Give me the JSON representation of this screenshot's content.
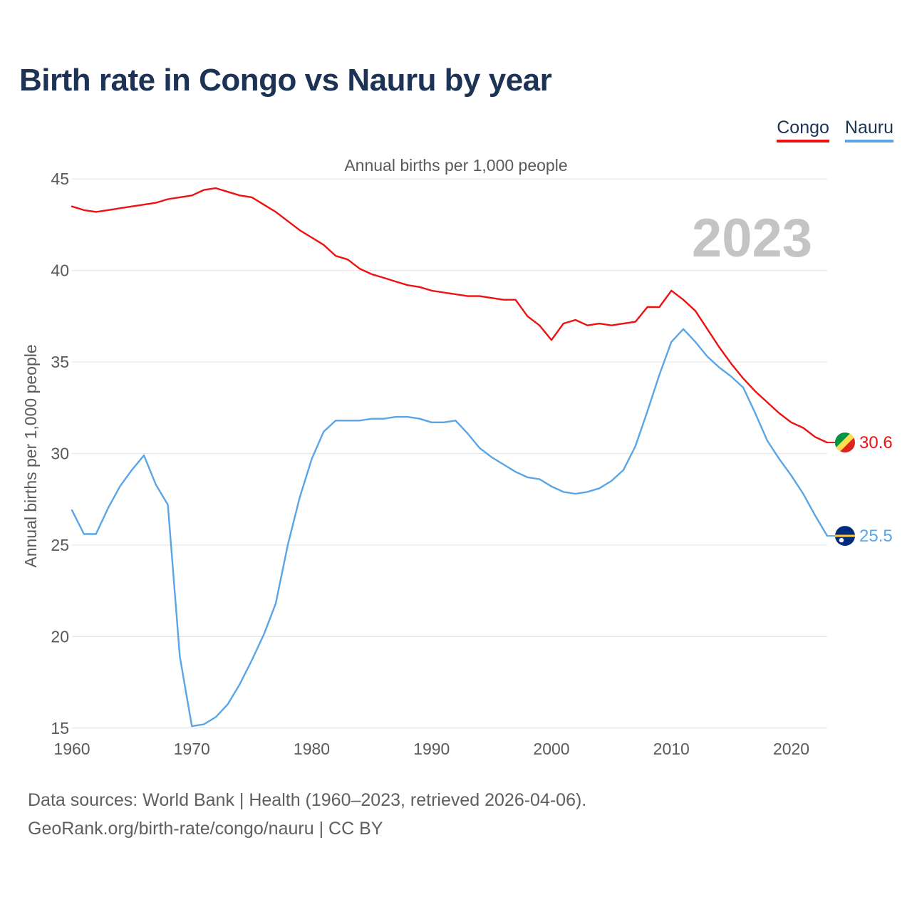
{
  "title": "Birth rate in Congo vs Nauru by year",
  "legend": [
    {
      "name": "Congo",
      "color": "#ee1111"
    },
    {
      "name": "Nauru",
      "color": "#5aa5e6"
    }
  ],
  "source": {
    "line1": "Data sources: World Bank | Health (1960–2023, retrieved 2026-04-06).",
    "line2": "GeoRank.org/birth-rate/congo/nauru | CC BY"
  },
  "chart_data": {
    "type": "line",
    "title": "Annual births per 1,000 people",
    "ylabel": "Annual births per 1,000 people",
    "xlabel": "",
    "year_watermark": "2023",
    "xlim": [
      1960,
      2023
    ],
    "ylim": [
      12.5,
      47.5
    ],
    "x_ticks": [
      1960,
      1970,
      1980,
      1990,
      2000,
      2010,
      2020
    ],
    "y_ticks": [
      15,
      20,
      25,
      30,
      35,
      40,
      45
    ],
    "grid": true,
    "x": [
      1960,
      1961,
      1962,
      1963,
      1964,
      1965,
      1966,
      1967,
      1968,
      1969,
      1970,
      1971,
      1972,
      1973,
      1974,
      1975,
      1976,
      1977,
      1978,
      1979,
      1980,
      1981,
      1982,
      1983,
      1984,
      1985,
      1986,
      1987,
      1988,
      1989,
      1990,
      1991,
      1992,
      1993,
      1994,
      1995,
      1996,
      1997,
      1998,
      1999,
      2000,
      2001,
      2002,
      2003,
      2004,
      2005,
      2006,
      2007,
      2008,
      2009,
      2010,
      2011,
      2012,
      2013,
      2014,
      2015,
      2016,
      2017,
      2018,
      2019,
      2020,
      2021,
      2022,
      2023
    ],
    "series": [
      {
        "name": "Congo",
        "color": "#ee1111",
        "end_label": "30.6",
        "values": [
          43.5,
          43.3,
          43.2,
          43.3,
          43.4,
          43.5,
          43.6,
          43.7,
          43.9,
          44.0,
          44.1,
          44.4,
          44.5,
          44.3,
          44.1,
          44.0,
          43.6,
          43.2,
          42.7,
          42.2,
          41.8,
          41.4,
          40.8,
          40.6,
          40.1,
          39.8,
          39.6,
          39.4,
          39.2,
          39.1,
          38.9,
          38.8,
          38.7,
          38.6,
          38.6,
          38.5,
          38.4,
          38.4,
          37.5,
          37.0,
          36.2,
          37.1,
          37.3,
          37.0,
          37.1,
          37.0,
          37.1,
          37.2,
          38.0,
          38.0,
          38.9,
          38.4,
          37.8,
          36.8,
          35.8,
          34.9,
          34.1,
          33.4,
          32.8,
          32.2,
          31.7,
          31.4,
          30.9,
          30.6
        ]
      },
      {
        "name": "Nauru",
        "color": "#5aa5e6",
        "end_label": "25.5",
        "values": [
          26.9,
          25.6,
          25.6,
          27.0,
          28.2,
          29.1,
          29.9,
          28.3,
          27.2,
          18.9,
          15.1,
          15.2,
          15.6,
          16.3,
          17.4,
          18.7,
          20.1,
          21.8,
          25.0,
          27.6,
          29.7,
          31.2,
          31.8,
          31.8,
          31.8,
          31.9,
          31.9,
          32.0,
          32.0,
          31.9,
          31.7,
          31.7,
          31.8,
          31.1,
          30.3,
          29.8,
          29.4,
          29.0,
          28.7,
          28.6,
          28.2,
          27.9,
          27.8,
          27.9,
          28.1,
          28.5,
          29.1,
          30.4,
          32.3,
          34.3,
          36.1,
          36.8,
          36.1,
          35.3,
          34.7,
          34.2,
          33.6,
          32.2,
          30.7,
          29.7,
          28.8,
          27.8,
          26.6,
          25.5
        ]
      }
    ]
  }
}
